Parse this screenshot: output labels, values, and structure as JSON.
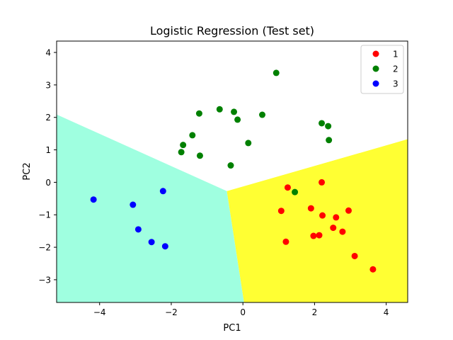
{
  "chart_data": {
    "type": "scatter",
    "title": "Logistic Regression (Test set)",
    "xlabel": "PC1",
    "ylabel": "PC2",
    "xlim": [
      -5.2,
      4.6
    ],
    "ylim": [
      -3.7,
      4.35
    ],
    "xticks": [
      -4,
      -2,
      0,
      2,
      4
    ],
    "yticks": [
      -3,
      -2,
      -1,
      0,
      1,
      2,
      3,
      4
    ],
    "grid": false,
    "legend_position": "top-right",
    "decision_regions": [
      {
        "class": "1",
        "color": "#ffff33",
        "polygon": [
          [
            -0.45,
            -0.27
          ],
          [
            4.6,
            1.33
          ],
          [
            4.6,
            -3.7
          ],
          [
            0.03,
            -3.7
          ]
        ]
      },
      {
        "class": "2",
        "color": "#ffffff",
        "polygon": [
          [
            -0.45,
            -0.27
          ],
          [
            -5.2,
            2.09
          ],
          [
            -5.2,
            4.35
          ],
          [
            4.6,
            4.35
          ],
          [
            4.6,
            1.33
          ]
        ]
      },
      {
        "class": "3",
        "color": "#9fffe0",
        "polygon": [
          [
            -0.45,
            -0.27
          ],
          [
            -5.2,
            2.09
          ],
          [
            -5.2,
            -3.7
          ],
          [
            0.03,
            -3.7
          ]
        ]
      }
    ],
    "series": [
      {
        "name": "1",
        "color": "#ff0000",
        "points": [
          [
            1.25,
            -0.16
          ],
          [
            2.2,
            0.0
          ],
          [
            1.07,
            -0.88
          ],
          [
            1.9,
            -0.8
          ],
          [
            2.22,
            -1.02
          ],
          [
            2.6,
            -1.08
          ],
          [
            2.95,
            -0.87
          ],
          [
            1.97,
            -1.65
          ],
          [
            2.13,
            -1.63
          ],
          [
            2.52,
            -1.4
          ],
          [
            2.78,
            -1.52
          ],
          [
            1.2,
            -1.83
          ],
          [
            3.12,
            -2.27
          ],
          [
            3.63,
            -2.68
          ]
        ]
      },
      {
        "name": "2",
        "color": "#008000",
        "points": [
          [
            0.93,
            3.37
          ],
          [
            -0.65,
            2.25
          ],
          [
            -0.25,
            2.17
          ],
          [
            -1.22,
            2.12
          ],
          [
            0.54,
            2.08
          ],
          [
            -0.15,
            1.93
          ],
          [
            2.2,
            1.82
          ],
          [
            2.38,
            1.73
          ],
          [
            -1.41,
            1.45
          ],
          [
            2.4,
            1.3
          ],
          [
            -1.67,
            1.15
          ],
          [
            0.15,
            1.21
          ],
          [
            -1.72,
            0.93
          ],
          [
            -1.2,
            0.82
          ],
          [
            -0.34,
            0.52
          ],
          [
            1.45,
            -0.3
          ]
        ]
      },
      {
        "name": "3",
        "color": "#0000ff",
        "points": [
          [
            -2.23,
            -0.27
          ],
          [
            -4.17,
            -0.53
          ],
          [
            -3.07,
            -0.69
          ],
          [
            -2.92,
            -1.45
          ],
          [
            -2.55,
            -1.84
          ],
          [
            -2.17,
            -1.97
          ]
        ]
      }
    ]
  }
}
